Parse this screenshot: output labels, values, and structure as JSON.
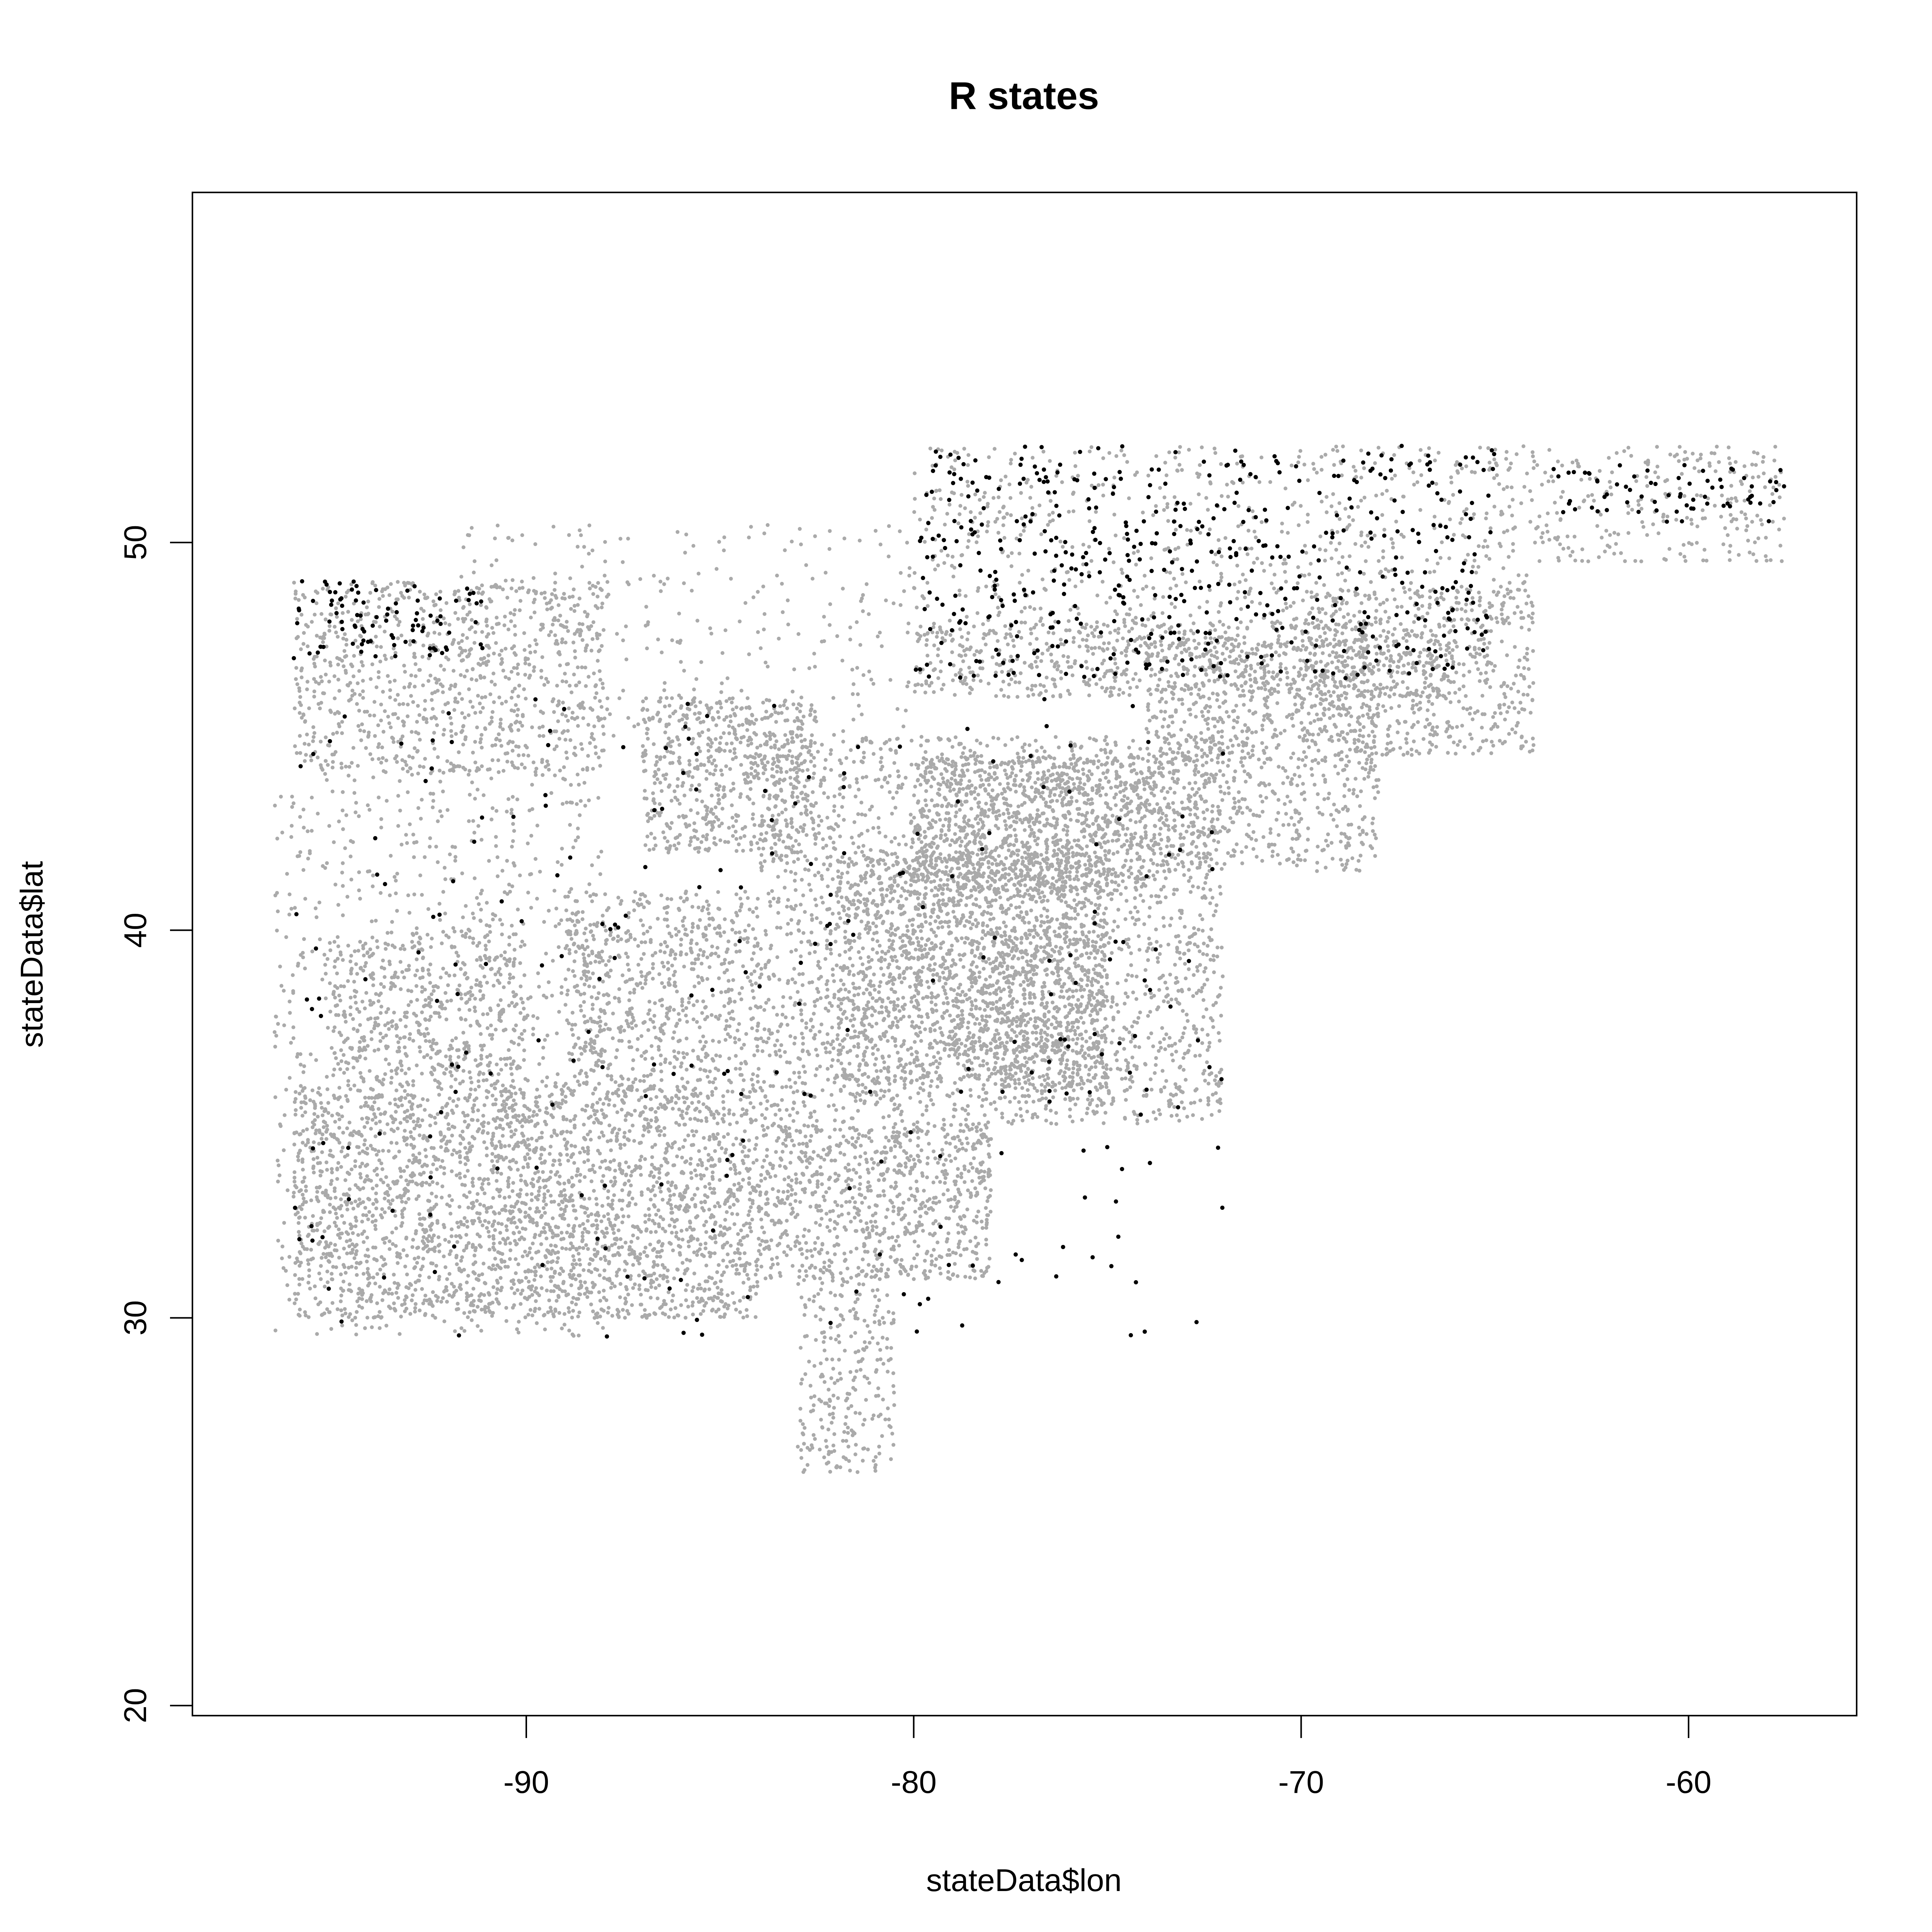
{
  "chart_data": {
    "type": "scatter",
    "title": "R states",
    "xlabel": "stateData$lon",
    "ylabel": "stateData$lat",
    "xlim": [
      -97.0,
      -57.0
    ],
    "ylim": [
      20.0,
      59.0
    ],
    "x_ticks": [
      -90,
      -80,
      -70,
      -60
    ],
    "y_ticks": [
      20,
      30,
      40,
      50
    ],
    "x_tick_labels": [
      "-90",
      "-80",
      "-70",
      "-60"
    ],
    "y_tick_labels": [
      "20",
      "30",
      "40",
      "50"
    ],
    "grid": false,
    "legend": "none",
    "series": [
      {
        "color": "#aaaaaa",
        "regions": [
          {
            "x": [
              -84,
              -72
            ],
            "y": [
              35,
              45
            ],
            "n": 2600
          },
          {
            "x": [
              -82,
              -75
            ],
            "y": [
              36,
              42
            ],
            "n": 1400
          },
          {
            "x": [
              -80,
              -74
            ],
            "y": [
              41,
              44.5
            ],
            "n": 900
          },
          {
            "x": [
              -74,
              -68
            ],
            "y": [
              41.5,
              47.5
            ],
            "n": 900
          },
          {
            "x": [
              -70,
              -64
            ],
            "y": [
              44.5,
              48.8
            ],
            "n": 600
          },
          {
            "x": [
              -80,
              -66
            ],
            "y": [
              46,
              48
            ],
            "n": 800
          },
          {
            "x": [
              -80,
              -64
            ],
            "y": [
              48,
              52.5
            ],
            "n": 700
          },
          {
            "x": [
              -64,
              -57.5
            ],
            "y": [
              49.5,
              52.5
            ],
            "n": 250
          },
          {
            "x": [
              -96,
              -88
            ],
            "y": [
              44,
              49
            ],
            "n": 900
          },
          {
            "x": [
              -87,
              -82.5
            ],
            "y": [
              42,
              46
            ],
            "n": 600
          },
          {
            "x": [
              -91,
              -84
            ],
            "y": [
              30,
              36
            ],
            "n": 1600
          },
          {
            "x": [
              -84,
              -78
            ],
            "y": [
              31,
              35
            ],
            "n": 900
          },
          {
            "x": [
              -96,
              -91
            ],
            "y": [
              30,
              36
            ],
            "n": 900
          },
          {
            "x": [
              -95,
              -90
            ],
            "y": [
              36,
              40
            ],
            "n": 500
          },
          {
            "x": [
              -89,
              -84
            ],
            "y": [
              36,
              41
            ],
            "n": 700
          },
          {
            "x": [
              -83,
              -80.5
            ],
            "y": [
              26,
              31
            ],
            "n": 260
          },
          {
            "x": [
              -96.5,
              -88
            ],
            "y": [
              29.5,
              44
            ],
            "n": 1000
          },
          {
            "x": [
              -92,
              -80
            ],
            "y": [
              45,
              50.5
            ],
            "n": 300
          },
          {
            "x": [
              -78,
              -75
            ],
            "y": [
              35.5,
              40
            ],
            "n": 300
          }
        ]
      },
      {
        "color": "#000000",
        "regions": [
          {
            "x": [
              -80,
              -65
            ],
            "y": [
              46.5,
              52.5
            ],
            "n": 500
          },
          {
            "x": [
              -63.5,
              -57.5
            ],
            "y": [
              50.5,
              52
            ],
            "n": 70
          },
          {
            "x": [
              -96,
              -91
            ],
            "y": [
              47,
              49
            ],
            "n": 90
          },
          {
            "x": [
              -96,
              -72
            ],
            "y": [
              29.5,
              46
            ],
            "n": 260
          }
        ]
      }
    ]
  }
}
